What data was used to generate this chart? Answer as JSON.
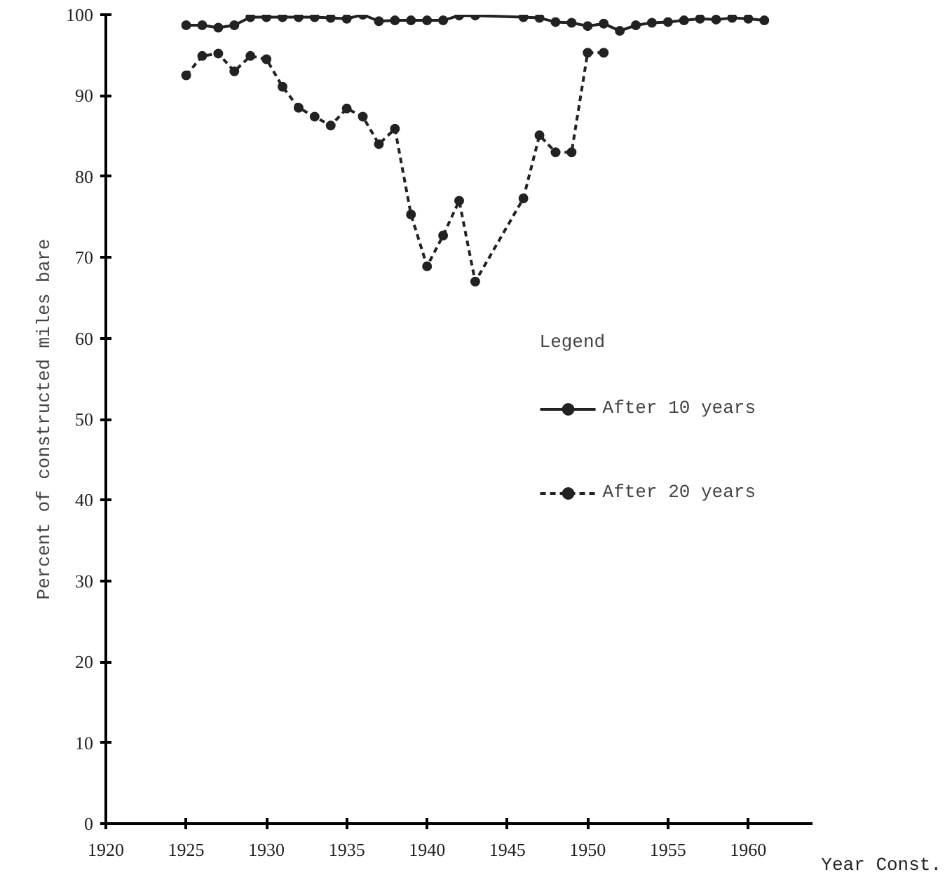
{
  "chart_data": {
    "type": "line",
    "xlabel": "Year Const.",
    "ylabel": "Percent of constructed miles bare",
    "legend_title": "Legend",
    "xlim": [
      1920,
      1964
    ],
    "xticks": [
      1920,
      1925,
      1930,
      1935,
      1940,
      1945,
      1950,
      1955,
      1960
    ],
    "ylim": [
      0,
      100
    ],
    "yticks": [
      0,
      10,
      20,
      30,
      40,
      50,
      60,
      70,
      80,
      90,
      100
    ],
    "grid": false,
    "legend": "right",
    "marker": "circle",
    "series": [
      {
        "name": "After 10 years",
        "color": "#222222",
        "line_style": "solid",
        "x": [
          1925,
          1926,
          1927,
          1928,
          1929,
          1930,
          1931,
          1932,
          1933,
          1934,
          1935,
          1936,
          1937,
          1938,
          1939,
          1940,
          1941,
          1942,
          1943,
          1946,
          1947,
          1948,
          1949,
          1950,
          1951,
          1952,
          1953,
          1954,
          1955,
          1956,
          1957,
          1958,
          1959,
          1960,
          1961
        ],
        "values": [
          98.7,
          98.7,
          98.4,
          98.7,
          99.7,
          99.7,
          99.7,
          99.7,
          99.7,
          99.6,
          99.5,
          100,
          99.2,
          99.3,
          99.3,
          99.3,
          99.3,
          99.9,
          99.9,
          99.7,
          99.6,
          99.1,
          99.0,
          98.6,
          98.9,
          98.0,
          98.7,
          99.0,
          99.1,
          99.3,
          99.5,
          99.4,
          99.6,
          99.5,
          99.3
        ]
      },
      {
        "name": "After 20 years",
        "color": "#222222",
        "line_style": "dashed",
        "x": [
          1925,
          1926,
          1927,
          1928,
          1929,
          1930,
          1931,
          1932,
          1933,
          1934,
          1935,
          1936,
          1937,
          1938,
          1939,
          1940,
          1941,
          1942,
          1943,
          1946,
          1947,
          1948,
          1949,
          1950,
          1951
        ],
        "values": [
          92.5,
          94.9,
          95.2,
          93.0,
          94.9,
          94.5,
          91.1,
          88.5,
          87.4,
          86.3,
          88.4,
          87.4,
          84.0,
          85.9,
          75.3,
          68.9,
          72.7,
          77.0,
          67.0,
          77.3,
          85.1,
          83.0,
          83.0,
          95.3,
          95.3
        ]
      }
    ]
  }
}
